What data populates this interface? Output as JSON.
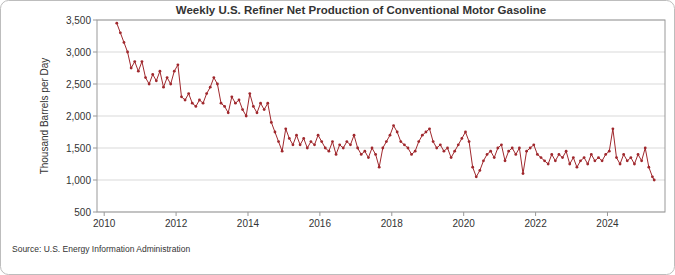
{
  "chart_data": {
    "type": "line",
    "title": "Weekly U.S. Refiner Net Production of Conventional Motor Gasoline",
    "y_label": "Thousand Barrels per Day",
    "source": "Source: U.S. Energy Information Administration",
    "color": "#a0282d",
    "marker": "circle",
    "grid": true,
    "xlim": [
      2009.8,
      2025.6
    ],
    "xticks": [
      2010,
      2012,
      2014,
      2016,
      2018,
      2020,
      2022,
      2024
    ],
    "ylim": [
      500,
      3500
    ],
    "yticks": [
      500,
      {
        "value": 1000,
        "label": "1,000"
      },
      {
        "value": 1500,
        "label": "1,500"
      },
      {
        "value": 2000,
        "label": "2,000"
      },
      {
        "value": 2500,
        "label": "2,500"
      },
      {
        "value": 3000,
        "label": "3,000"
      },
      {
        "value": 3500,
        "label": "3,500"
      }
    ],
    "x": [
      2010.35,
      2010.45,
      2010.55,
      2010.65,
      2010.75,
      2010.85,
      2010.95,
      2011.05,
      2011.15,
      2011.25,
      2011.35,
      2011.45,
      2011.55,
      2011.65,
      2011.75,
      2011.85,
      2011.95,
      2012.05,
      2012.15,
      2012.25,
      2012.35,
      2012.45,
      2012.55,
      2012.65,
      2012.75,
      2012.85,
      2012.95,
      2013.05,
      2013.15,
      2013.25,
      2013.35,
      2013.45,
      2013.55,
      2013.65,
      2013.75,
      2013.85,
      2013.95,
      2014.05,
      2014.15,
      2014.25,
      2014.35,
      2014.45,
      2014.55,
      2014.65,
      2014.75,
      2014.85,
      2014.95,
      2015.05,
      2015.15,
      2015.25,
      2015.35,
      2015.45,
      2015.55,
      2015.65,
      2015.75,
      2015.85,
      2015.95,
      2016.05,
      2016.15,
      2016.25,
      2016.35,
      2016.45,
      2016.55,
      2016.65,
      2016.75,
      2016.85,
      2016.95,
      2017.05,
      2017.15,
      2017.25,
      2017.35,
      2017.45,
      2017.55,
      2017.65,
      2017.75,
      2017.85,
      2017.95,
      2018.05,
      2018.15,
      2018.25,
      2018.35,
      2018.45,
      2018.55,
      2018.65,
      2018.75,
      2018.85,
      2018.95,
      2019.05,
      2019.15,
      2019.25,
      2019.35,
      2019.45,
      2019.55,
      2019.65,
      2019.75,
      2019.85,
      2019.95,
      2020.05,
      2020.15,
      2020.25,
      2020.35,
      2020.45,
      2020.55,
      2020.65,
      2020.75,
      2020.85,
      2020.95,
      2021.05,
      2021.15,
      2021.25,
      2021.35,
      2021.45,
      2021.55,
      2021.65,
      2021.75,
      2021.85,
      2021.95,
      2022.05,
      2022.15,
      2022.25,
      2022.35,
      2022.45,
      2022.55,
      2022.65,
      2022.75,
      2022.85,
      2022.95,
      2023.05,
      2023.15,
      2023.25,
      2023.35,
      2023.45,
      2023.55,
      2023.65,
      2023.75,
      2023.85,
      2023.95,
      2024.05,
      2024.15,
      2024.25,
      2024.35,
      2024.45,
      2024.55,
      2024.65,
      2024.75,
      2024.85,
      2024.95,
      2025.05,
      2025.15,
      2025.25,
      2025.3
    ],
    "values": [
      3450,
      3300,
      3150,
      3000,
      2750,
      2850,
      2700,
      2850,
      2600,
      2500,
      2650,
      2550,
      2700,
      2450,
      2600,
      2500,
      2700,
      2800,
      2300,
      2250,
      2350,
      2200,
      2150,
      2250,
      2200,
      2350,
      2450,
      2600,
      2500,
      2200,
      2150,
      2050,
      2300,
      2200,
      2250,
      2100,
      2000,
      2350,
      2150,
      2050,
      2200,
      2100,
      2200,
      1900,
      1750,
      1600,
      1450,
      1800,
      1650,
      1550,
      1700,
      1550,
      1650,
      1500,
      1600,
      1550,
      1700,
      1600,
      1500,
      1450,
      1600,
      1400,
      1550,
      1500,
      1600,
      1550,
      1700,
      1500,
      1400,
      1450,
      1350,
      1500,
      1400,
      1200,
      1500,
      1600,
      1700,
      1850,
      1750,
      1600,
      1550,
      1500,
      1400,
      1450,
      1600,
      1700,
      1750,
      1800,
      1600,
      1500,
      1550,
      1450,
      1500,
      1350,
      1450,
      1550,
      1650,
      1750,
      1600,
      1200,
      1050,
      1150,
      1300,
      1400,
      1450,
      1350,
      1500,
      1550,
      1300,
      1450,
      1500,
      1400,
      1500,
      1100,
      1450,
      1500,
      1550,
      1400,
      1350,
      1300,
      1250,
      1400,
      1300,
      1400,
      1350,
      1450,
      1250,
      1350,
      1200,
      1300,
      1350,
      1250,
      1400,
      1300,
      1350,
      1300,
      1400,
      1450,
      1800,
      1350,
      1250,
      1400,
      1300,
      1350,
      1250,
      1400,
      1300,
      1500,
      1200,
      1050,
      1000
    ]
  }
}
